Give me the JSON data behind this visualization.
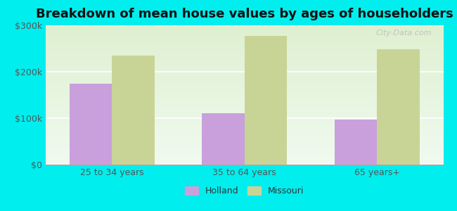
{
  "title": "Breakdown of mean house values by ages of householders",
  "categories": [
    "25 to 34 years",
    "35 to 64 years",
    "65 years+"
  ],
  "holland_values": [
    175000,
    110000,
    97000
  ],
  "missouri_values": [
    235000,
    278000,
    248000
  ],
  "holland_color": "#c9a0dc",
  "missouri_color": "#c8d496",
  "background_color": "#00eeee",
  "plot_bg_color_top": "#dff0d0",
  "plot_bg_color_bottom": "#f0faf0",
  "ylim": [
    0,
    300000
  ],
  "yticks": [
    0,
    100000,
    200000,
    300000
  ],
  "ytick_labels": [
    "$0",
    "$100k",
    "$200k",
    "$300k"
  ],
  "legend_labels": [
    "Holland",
    "Missouri"
  ],
  "bar_width": 0.32,
  "title_fontsize": 13,
  "tick_fontsize": 9,
  "legend_fontsize": 9,
  "watermark": "City-Data.com"
}
